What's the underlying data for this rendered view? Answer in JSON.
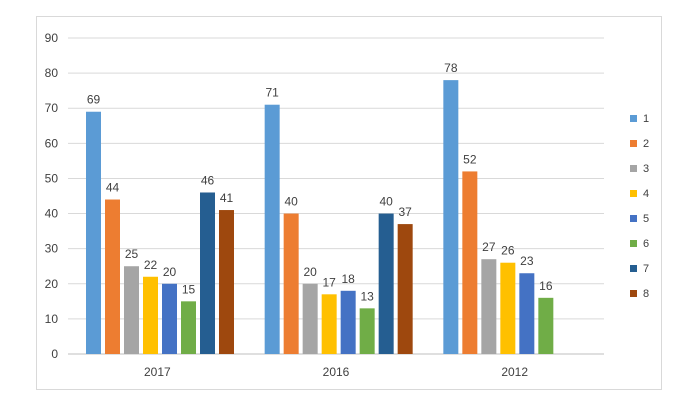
{
  "chart_data": {
    "type": "bar",
    "title": "",
    "xlabel": "",
    "ylabel": "",
    "categories": [
      "2017",
      "2016",
      "2012"
    ],
    "ylim": [
      0,
      90
    ],
    "yticks": [
      "0",
      "10",
      "20",
      "30",
      "40",
      "50",
      "60",
      "70",
      "80",
      "90"
    ],
    "grid": true,
    "legend_position": "right",
    "series": [
      {
        "name": "1",
        "color": "#5b9bd5",
        "values": [
          69,
          71,
          78
        ]
      },
      {
        "name": "2",
        "color": "#ed7d31",
        "values": [
          44,
          40,
          52
        ]
      },
      {
        "name": "3",
        "color": "#a5a5a5",
        "values": [
          25,
          20,
          27
        ]
      },
      {
        "name": "4",
        "color": "#ffc000",
        "values": [
          22,
          17,
          26
        ]
      },
      {
        "name": "5",
        "color": "#4472c4",
        "values": [
          20,
          18,
          23
        ]
      },
      {
        "name": "6",
        "color": "#70ad47",
        "values": [
          15,
          13,
          16
        ]
      },
      {
        "name": "7",
        "color": "#255e91",
        "values": [
          46,
          40,
          null
        ]
      },
      {
        "name": "8",
        "color": "#9e480e",
        "values": [
          41,
          37,
          null
        ]
      }
    ]
  }
}
